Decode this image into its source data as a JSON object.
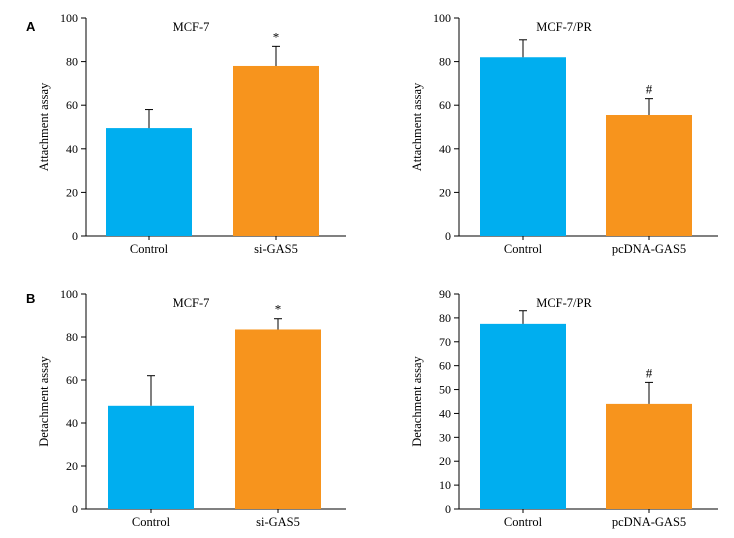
{
  "panel_labels": [
    "A",
    "B"
  ],
  "colors": {
    "control": "#00aeef",
    "treatment": "#f7941d",
    "axis": "#000000"
  },
  "chart_data": [
    {
      "type": "bar",
      "title": "MCF-7",
      "ylabel": "Attachment assay",
      "categories": [
        "Control",
        "si-GAS5"
      ],
      "values": [
        49.5,
        78
      ],
      "errors": [
        8.5,
        9
      ],
      "markers": [
        "",
        "*"
      ],
      "ylim": [
        0,
        100
      ],
      "yticks": [
        0,
        20,
        40,
        60,
        80,
        100
      ]
    },
    {
      "type": "bar",
      "title": "MCF-7/PR",
      "ylabel": "Attachment assay",
      "categories": [
        "Control",
        "pcDNA-GAS5"
      ],
      "values": [
        82,
        55.5
      ],
      "errors": [
        8,
        7.5
      ],
      "markers": [
        "",
        "#"
      ],
      "ylim": [
        0,
        100
      ],
      "yticks": [
        0,
        20,
        40,
        60,
        80,
        100
      ]
    },
    {
      "type": "bar",
      "title": "MCF-7",
      "ylabel": "Detachment assay",
      "categories": [
        "Control",
        "si-GAS5"
      ],
      "values": [
        48,
        83.5
      ],
      "errors": [
        14,
        5
      ],
      "markers": [
        "",
        "*"
      ],
      "ylim": [
        0,
        100
      ],
      "yticks": [
        0,
        20,
        40,
        60,
        80,
        100
      ]
    },
    {
      "type": "bar",
      "title": "MCF-7/PR",
      "ylabel": "Detachment assay",
      "categories": [
        "Control",
        "pcDNA-GAS5"
      ],
      "values": [
        77.5,
        44
      ],
      "errors": [
        5.5,
        9
      ],
      "markers": [
        "",
        "#"
      ],
      "ylim": [
        0,
        90
      ],
      "yticks": [
        0,
        10,
        20,
        30,
        40,
        50,
        60,
        70,
        80,
        90
      ]
    }
  ]
}
